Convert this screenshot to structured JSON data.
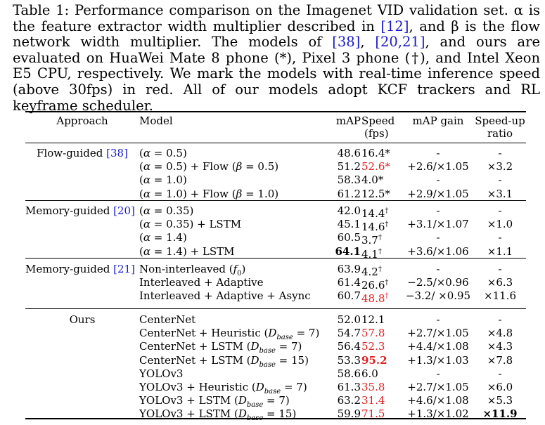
{
  "caption": {
    "line1": "Table 1: Performance comparison on the Imagenet VID validation set. α is the",
    "line2_a": "feature extractor width multiplier described in ",
    "line2_ref": "[12]",
    "line2_b": ", and β is the flow network",
    "line3": "width multiplier. The models of ",
    "line3_ref1": "[38]",
    "line3_mid": ", ",
    "line3_ref2": "[20,21]",
    "line3_b": ", and ours are evaluated on HuaWei",
    "line4": "Mate 8 phone (*), Pixel 3 phone (†), and Intel Xeon E5 CPU, respectively. We",
    "line5": "mark the models with real-time inference speed (above 30fps) in red. All of our",
    "line6": "models adopt KCF trackers and RL keyframe scheduler."
  },
  "header": {
    "approach": "Approach",
    "model": "Model",
    "map": "mAP",
    "speed": "Speed",
    "speed_unit": "(fps)",
    "gain": "mAP gain",
    "ratio1": "Speed-up",
    "ratio2": "ratio"
  },
  "groups": [
    {
      "approach": "Flow-guided",
      "ref": "[38]",
      "rows": [
        {
          "model": "(α = 0.5)",
          "map": "48.6",
          "speed": "16.4*",
          "gain": "-",
          "ratio": "-"
        },
        {
          "model": "(α = 0.5) + Flow (β = 0.5)",
          "map": "51.2",
          "speed": "52.6*",
          "gain": "+2.6/×1.05",
          "ratio": "×3.2"
        },
        {
          "model": "(α = 1.0)",
          "map": "58.3",
          "speed": "4.0*",
          "gain": "-",
          "ratio": "-"
        },
        {
          "model": "(α = 1.0) + Flow (β = 1.0)",
          "map": "61.2",
          "speed": "12.5*",
          "gain": "+2.9/×1.05",
          "ratio": "×3.1"
        }
      ]
    },
    {
      "approach": "Memory-guided",
      "ref": "[20]",
      "rows": [
        {
          "model": "(α = 0.35)",
          "map": "42.0",
          "speed": "14.4†",
          "gain": "-",
          "ratio": "-"
        },
        {
          "model": "(α = 0.35) + LSTM",
          "map": "45.1",
          "speed": "14.6†",
          "gain": "+3.1/×1.07",
          "ratio": "×1.0"
        },
        {
          "model": "(α = 1.4)",
          "map": "60.5",
          "speed": "3.7†",
          "gain": "-",
          "ratio": "-"
        },
        {
          "model": "(α = 1.4) + LSTM",
          "map": "64.1",
          "speed": "4.1†",
          "gain": "+3.6/×1.06",
          "ratio": "×1.1"
        }
      ]
    },
    {
      "approach": "Memory-guided",
      "ref": "[21]",
      "rows": [
        {
          "model": "Non-interleaved (f0)",
          "map": "63.9",
          "speed": "4.2†",
          "gain": "-",
          "ratio": "-"
        },
        {
          "model": "Interleaved + Adaptive",
          "map": "61.4",
          "speed": "26.6†",
          "gain": "−2.5/×0.96",
          "ratio": "×6.3"
        },
        {
          "model": "Interleaved + Adaptive + Async",
          "map": "60.7",
          "speed": "48.8†",
          "gain": "−3.2/ ×0.95",
          "ratio": "×11.6"
        }
      ]
    },
    {
      "approach": "Ours",
      "ref": "",
      "rows": [
        {
          "model": "CenterNet",
          "map": "52.0",
          "speed": "12.1",
          "gain": "-",
          "ratio": "-"
        },
        {
          "model": "CenterNet + Heuristic (Dbase = 7)",
          "map": "54.7",
          "speed": "57.8",
          "gain": "+2.7/×1.05",
          "ratio": "×4.8"
        },
        {
          "model": "CenterNet + LSTM (Dbase = 7)",
          "map": "56.4",
          "speed": "52.3",
          "gain": "+4.4/×1.08",
          "ratio": "×4.3"
        },
        {
          "model": "CenterNet + LSTM (Dbase = 15)",
          "map": "53.3",
          "speed": "95.2",
          "gain": "+1.3/×1.03",
          "ratio": "×7.8"
        },
        {
          "model": "YOLOv3",
          "map": "58.6",
          "speed": "6.0",
          "gain": "-",
          "ratio": "-"
        },
        {
          "model": "YOLOv3 + Heuristic (Dbase = 7)",
          "map": "61.3",
          "speed": "35.8",
          "gain": "+2.7/×1.05",
          "ratio": "×6.0"
        },
        {
          "model": "YOLOv3 + LSTM (Dbase = 7)",
          "map": "63.2",
          "speed": "31.4",
          "gain": "+4.6/×1.08",
          "ratio": "×5.3"
        },
        {
          "model": "YOLOv3 + LSTM (Dbase = 15)",
          "map": "59.9",
          "speed": "71.5",
          "gain": "+1.3/×1.02",
          "ratio": "×11.9"
        }
      ]
    }
  ],
  "colors": {
    "highlight": "#e02020",
    "citation": "#1a1acc"
  }
}
